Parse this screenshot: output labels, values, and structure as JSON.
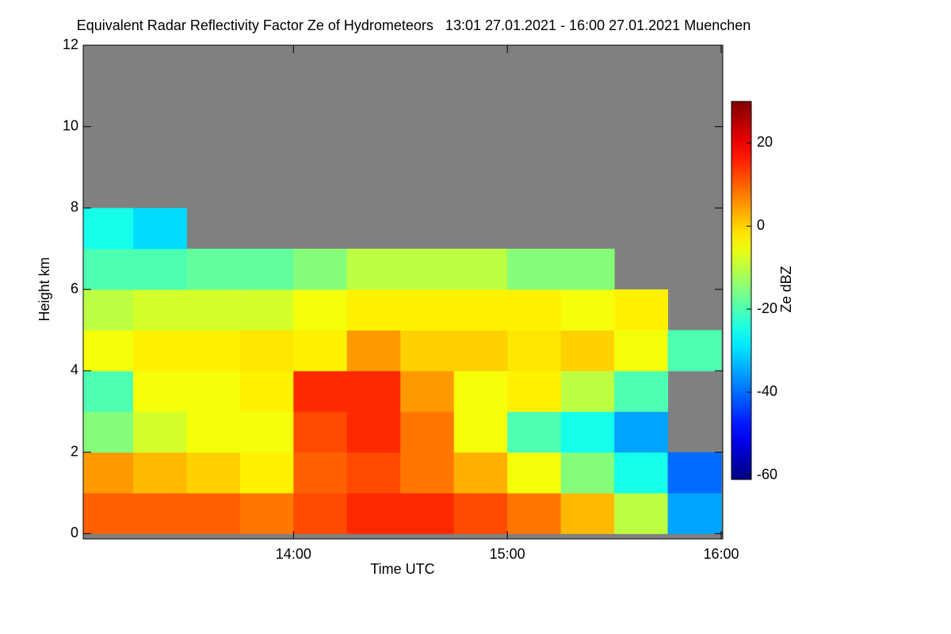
{
  "chart_data": {
    "type": "heatmap",
    "title": "Equivalent Radar Reflectivity Factor Ze of Hydrometeors   13:01 27.01.2021 - 16:00 27.01.2021 Muenchen",
    "x_label": "Time UTC",
    "y_label": "Height km",
    "colorbar_label": "Ze dBZ",
    "xlim": [
      "13:01",
      "16:00"
    ],
    "xticks": [
      "14:00",
      "15:00",
      "16:00"
    ],
    "ylim": [
      -0.13,
      12
    ],
    "yticks": [
      0,
      2,
      4,
      6,
      8,
      10,
      12
    ],
    "clim": [
      -61,
      30
    ],
    "cticks": [
      -60,
      -40,
      -20,
      0,
      20
    ],
    "colormap": "jet",
    "nodata_color": "#808080",
    "x_edges": [
      "13:01",
      "13:15",
      "13:30",
      "13:45",
      "14:00",
      "14:15",
      "14:30",
      "14:45",
      "15:00",
      "15:15",
      "15:30",
      "15:45",
      "16:00"
    ],
    "y_edges": [
      0,
      1,
      2,
      3,
      4,
      5,
      6,
      7,
      8
    ],
    "z": [
      [
        10,
        10,
        10,
        8,
        12,
        15,
        15,
        12,
        8,
        2,
        -10,
        -35
      ],
      [
        5,
        2,
        0,
        -3,
        10,
        12,
        8,
        3,
        -5,
        -15,
        -25,
        -40
      ],
      [
        -15,
        -8,
        -5,
        -5,
        12,
        15,
        8,
        -5,
        -20,
        -25,
        -35,
        null
      ],
      [
        -20,
        -5,
        -5,
        -3,
        15,
        15,
        5,
        -5,
        -3,
        -10,
        -20,
        null
      ],
      [
        -5,
        -3,
        -3,
        -2,
        -3,
        5,
        0,
        0,
        -2,
        0,
        -5,
        -20
      ],
      [
        -10,
        -8,
        -8,
        -8,
        -5,
        -3,
        -3,
        -3,
        -3,
        -5,
        -3,
        null
      ],
      [
        -20,
        -20,
        -18,
        -18,
        -15,
        -10,
        -10,
        -10,
        -15,
        -15,
        null,
        null
      ],
      [
        -25,
        -30,
        null,
        null,
        null,
        null,
        null,
        null,
        null,
        null,
        null,
        null
      ]
    ]
  }
}
